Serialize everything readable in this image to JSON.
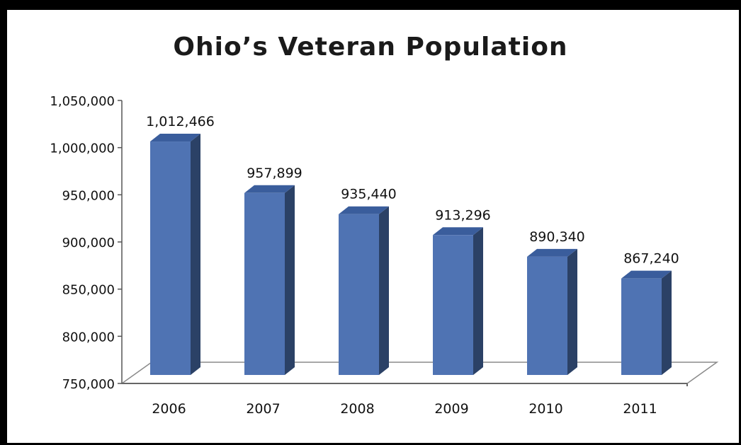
{
  "chart_data": {
    "type": "bar",
    "title": "Ohio’s Veteran Population",
    "categories": [
      "2006",
      "2007",
      "2008",
      "2009",
      "2010",
      "2011"
    ],
    "values": [
      1012466,
      957899,
      935440,
      913296,
      890340,
      867240
    ],
    "data_labels": [
      "1,012,466",
      "957,899",
      "935,440",
      "913,296",
      "890,340",
      "867,240"
    ],
    "ylim": [
      750000,
      1050000
    ],
    "yticks": [
      750000,
      800000,
      850000,
      900000,
      950000,
      1000000,
      1050000
    ],
    "ytick_labels": [
      "750,000",
      "800,000",
      "850,000",
      "900,000",
      "950,000",
      "1,000,000",
      "1,050,000"
    ],
    "grid": false,
    "legend": "none",
    "style": "3d-column",
    "colors": {
      "bar_front": "#4f73b3",
      "bar_side": "#2b4166",
      "bar_top": "#3a5d9c"
    }
  }
}
